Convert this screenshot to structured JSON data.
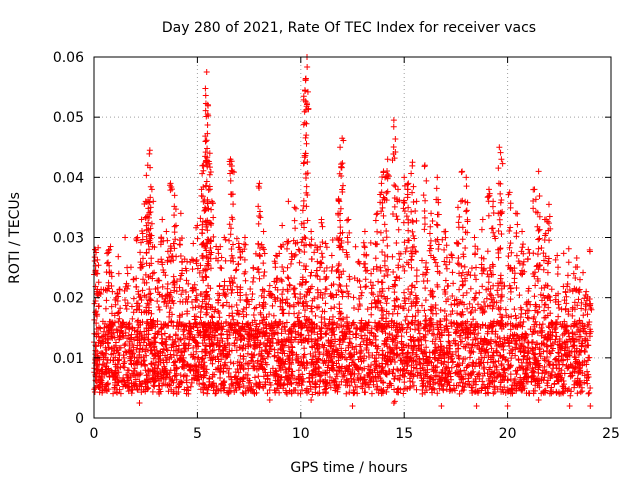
{
  "chart_data": {
    "type": "scatter",
    "title": "Day 280 of 2021, Rate Of TEC Index for receiver vacs",
    "xlabel": "GPS time / hours",
    "ylabel": "ROTI / TECUs",
    "xlim": [
      0,
      25
    ],
    "ylim": [
      0,
      0.06
    ],
    "x_ticks": [
      0,
      5,
      10,
      15,
      20,
      25
    ],
    "x_tick_labels": [
      "0",
      "5",
      "10",
      "15",
      "20",
      "25"
    ],
    "y_ticks": [
      0,
      0.01,
      0.02,
      0.03,
      0.04,
      0.05,
      0.06
    ],
    "y_tick_labels": [
      "0",
      "0.01",
      "0.02",
      "0.03",
      "0.04",
      "0.05",
      "0.06"
    ],
    "grid": true,
    "marker": "+",
    "color": "#ff0000",
    "data_x_range": [
      0,
      24
    ],
    "typical_band": [
      0.003,
      0.02
    ],
    "series": [
      {
        "values": [
          [
            0.05,
            0.028
          ],
          [
            0.1,
            0.0275
          ],
          [
            0.2,
            0.0283
          ],
          [
            0.7,
            0.0278
          ],
          [
            0.8,
            0.0285
          ],
          [
            1.2,
            0.024
          ],
          [
            1.6,
            0.025
          ],
          [
            1.9,
            0.023
          ],
          [
            2.1,
            0.03
          ],
          [
            2.3,
            0.033
          ],
          [
            2.5,
            0.036
          ],
          [
            2.6,
            0.042
          ],
          [
            2.7,
            0.0445
          ],
          [
            2.8,
            0.038
          ],
          [
            3.1,
            0.026
          ],
          [
            3.3,
            0.033
          ],
          [
            3.5,
            0.031
          ],
          [
            3.7,
            0.039
          ],
          [
            3.9,
            0.037
          ],
          [
            4.2,
            0.034
          ],
          [
            4.5,
            0.026
          ],
          [
            4.8,
            0.029
          ],
          [
            5.0,
            0.032
          ],
          [
            5.2,
            0.038
          ],
          [
            5.3,
            0.042
          ],
          [
            5.4,
            0.046
          ],
          [
            5.5,
            0.0505
          ],
          [
            5.45,
            0.0575
          ],
          [
            5.6,
            0.044
          ],
          [
            5.7,
            0.036
          ],
          [
            6.0,
            0.028
          ],
          [
            6.3,
            0.03
          ],
          [
            6.6,
            0.043
          ],
          [
            6.7,
            0.041
          ],
          [
            7.0,
            0.029
          ],
          [
            7.3,
            0.03
          ],
          [
            7.7,
            0.025
          ],
          [
            8.0,
            0.039
          ],
          [
            8.2,
            0.031
          ],
          [
            8.5,
            0.022
          ],
          [
            8.8,
            0.027
          ],
          [
            9.1,
            0.032
          ],
          [
            9.4,
            0.036
          ],
          [
            9.7,
            0.035
          ],
          [
            9.9,
            0.028
          ],
          [
            10.1,
            0.0345
          ],
          [
            10.2,
            0.0545
          ],
          [
            10.3,
            0.06
          ],
          [
            10.5,
            0.031
          ],
          [
            10.8,
            0.026
          ],
          [
            11.0,
            0.033
          ],
          [
            11.2,
            0.029
          ],
          [
            11.5,
            0.027
          ],
          [
            11.8,
            0.034
          ],
          [
            11.9,
            0.045
          ],
          [
            12.0,
            0.0465
          ],
          [
            12.3,
            0.033
          ],
          [
            12.8,
            0.026
          ],
          [
            13.1,
            0.031
          ],
          [
            13.4,
            0.024
          ],
          [
            13.7,
            0.034
          ],
          [
            13.9,
            0.039
          ],
          [
            14.0,
            0.041
          ],
          [
            14.2,
            0.043
          ],
          [
            14.5,
            0.0495
          ],
          [
            14.7,
            0.038
          ],
          [
            15.0,
            0.04
          ],
          [
            15.2,
            0.039
          ],
          [
            15.4,
            0.0425
          ],
          [
            15.6,
            0.036
          ],
          [
            16.0,
            0.042
          ],
          [
            16.3,
            0.034
          ],
          [
            16.6,
            0.04
          ],
          [
            17.0,
            0.031
          ],
          [
            17.3,
            0.027
          ],
          [
            17.6,
            0.035
          ],
          [
            17.8,
            0.041
          ],
          [
            18.0,
            0.04
          ],
          [
            18.4,
            0.03
          ],
          [
            18.8,
            0.033
          ],
          [
            19.1,
            0.038
          ],
          [
            19.3,
            0.036
          ],
          [
            19.6,
            0.045
          ],
          [
            19.7,
            0.043
          ],
          [
            20.1,
            0.0375
          ],
          [
            20.4,
            0.034
          ],
          [
            20.7,
            0.031
          ],
          [
            21.0,
            0.028
          ],
          [
            21.3,
            0.038
          ],
          [
            21.5,
            0.041
          ],
          [
            21.8,
            0.033
          ],
          [
            22.0,
            0.0355
          ],
          [
            22.4,
            0.027
          ],
          [
            22.8,
            0.021
          ],
          [
            23.2,
            0.024
          ],
          [
            23.5,
            0.023
          ],
          [
            23.8,
            0.021
          ],
          [
            24.0,
            0.019
          ],
          [
            0.3,
            0.005
          ],
          [
            2.2,
            0.0025
          ],
          [
            4.0,
            0.004
          ],
          [
            6.5,
            0.004
          ],
          [
            8.5,
            0.003
          ],
          [
            10.5,
            0.003
          ],
          [
            12.5,
            0.002
          ],
          [
            14.5,
            0.0025
          ],
          [
            16.8,
            0.002
          ],
          [
            18.5,
            0.002
          ],
          [
            20.0,
            0.002
          ],
          [
            21.5,
            0.003
          ],
          [
            23.0,
            0.002
          ],
          [
            24.0,
            0.002
          ]
        ]
      }
    ]
  }
}
